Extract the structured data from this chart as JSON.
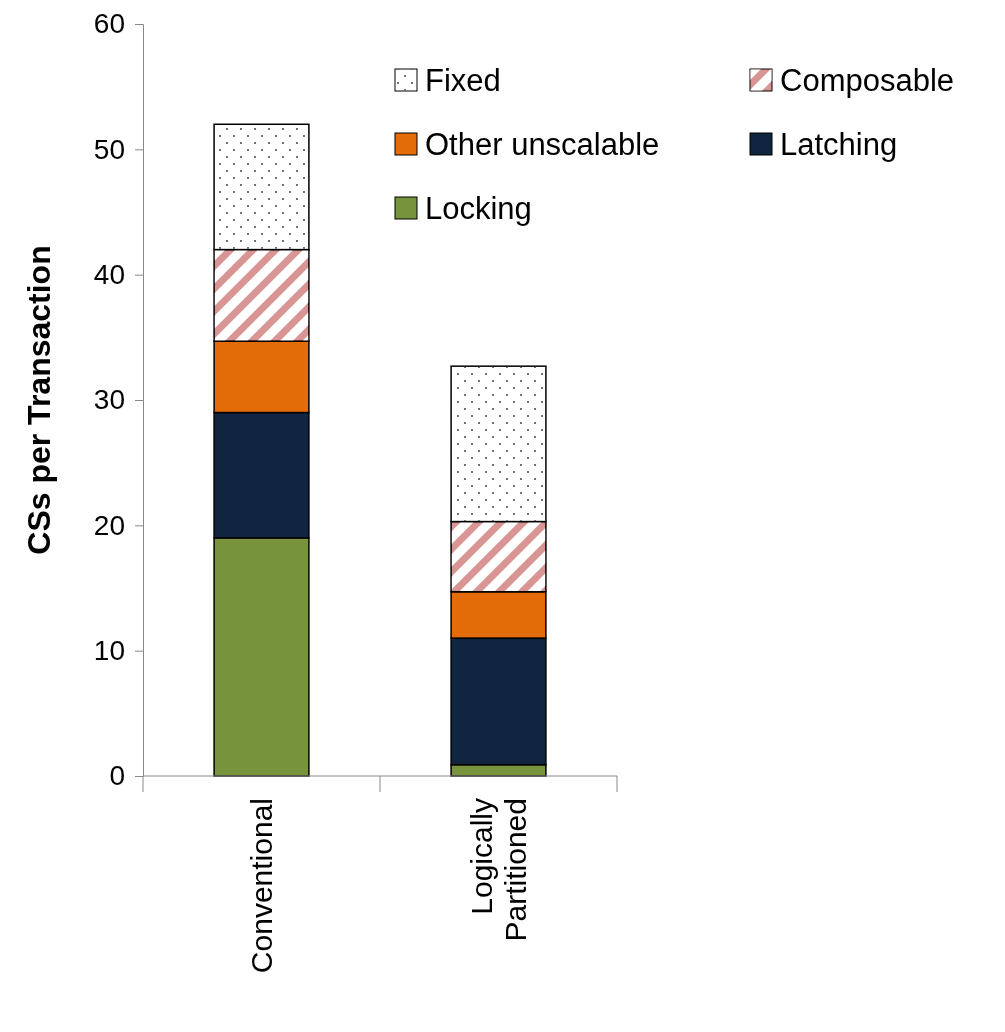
{
  "chart_data": {
    "type": "bar",
    "stacked": true,
    "ylabel": "CSs per Transaction",
    "categories": [
      "Conventional",
      "Logically Partitioned"
    ],
    "series": [
      {
        "name": "Locking",
        "color": "#77933c",
        "values": [
          19,
          0.9
        ]
      },
      {
        "name": "Latching",
        "color": "#10253f",
        "values": [
          10,
          10.1
        ]
      },
      {
        "name": "Other unscalable",
        "color": "#e36c09",
        "values": [
          5.7,
          3.7
        ]
      },
      {
        "name": "Composable",
        "color": "#d99594",
        "values": [
          7.3,
          5.6
        ]
      },
      {
        "name": "Fixed",
        "color": "#ffffff",
        "values": [
          10,
          12.4
        ]
      }
    ],
    "ylim": [
      0,
      60
    ],
    "yticks": [
      0,
      10,
      20,
      30,
      40,
      50,
      60
    ],
    "grid": false,
    "legend": "top right"
  }
}
